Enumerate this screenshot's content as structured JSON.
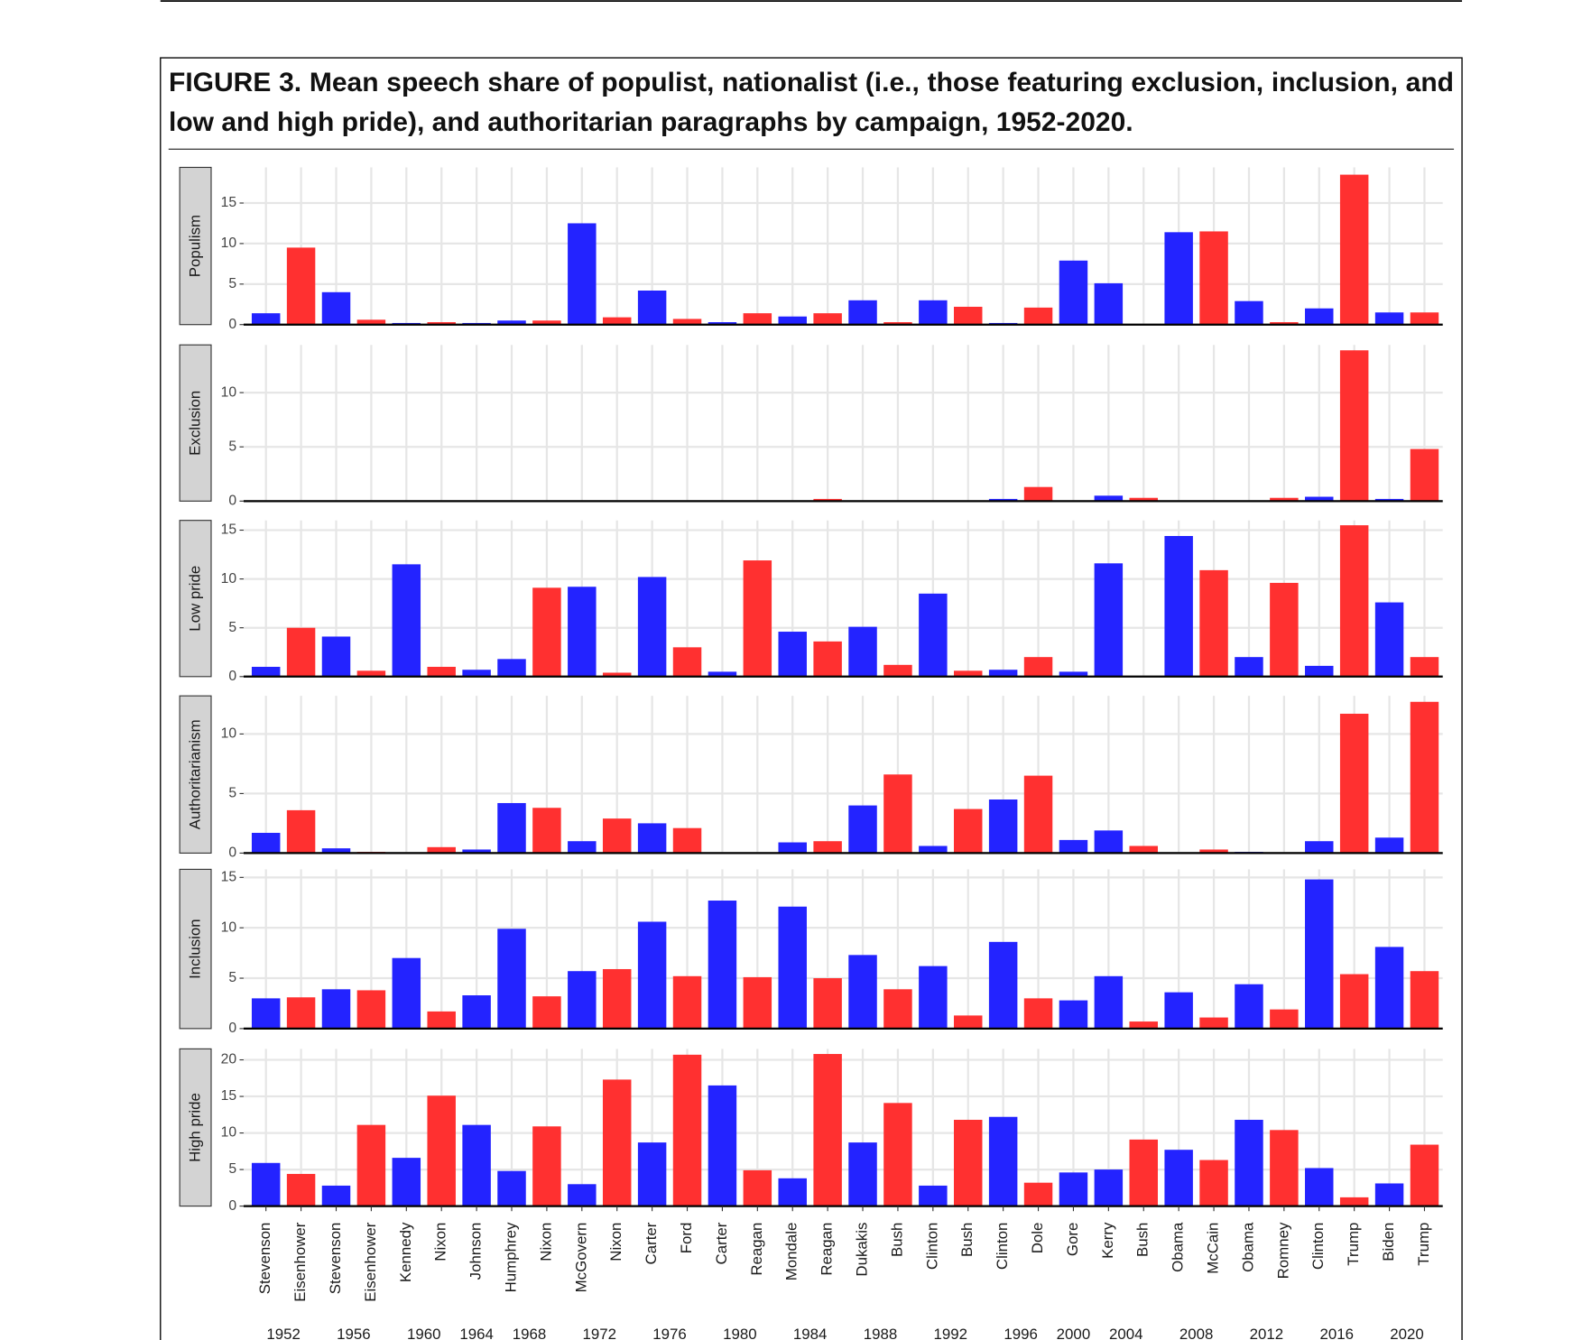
{
  "chart_data": {
    "type": "bar",
    "title": "FIGURE 3.  Mean speech share of populist, nationalist (i.e., those featuring exclusion, inclusion, and low and high pride), and authoritarian paragraphs by campaign, 1952-2020.",
    "categories": [
      "Stevenson",
      "Eisenhower",
      "Stevenson",
      "Eisenhower",
      "Kennedy",
      "Nixon",
      "Johnson",
      "Humphrey",
      "Nixon",
      "McGovern",
      "Nixon",
      "Carter",
      "Ford",
      "Carter",
      "Reagan",
      "Mondale",
      "Reagan",
      "Dukakis",
      "Bush",
      "Clinton",
      "Bush",
      "Clinton",
      "Dole",
      "Gore",
      "Kerry",
      "Bush",
      "Obama",
      "McCain",
      "Obama",
      "Romney",
      "Clinton",
      "Trump",
      "Biden",
      "Trump"
    ],
    "years": [
      "1952",
      "1952",
      "1956",
      "1956",
      "1960",
      "1960",
      "1964",
      "1968",
      "1968",
      "1972",
      "1972",
      "1976",
      "1976",
      "1980",
      "1980",
      "1984",
      "1984",
      "1988",
      "1988",
      "1992",
      "1992",
      "1996",
      "1996",
      "2000",
      "2004",
      "2004",
      "2008",
      "2008",
      "2012",
      "2012",
      "2016",
      "2016",
      "2020",
      "2020"
    ],
    "colors": [
      "#2323ff",
      "#ff3030",
      "#2323ff",
      "#ff3030",
      "#2323ff",
      "#ff3030",
      "#2323ff",
      "#2323ff",
      "#ff3030",
      "#2323ff",
      "#ff3030",
      "#2323ff",
      "#ff3030",
      "#2323ff",
      "#ff3030",
      "#2323ff",
      "#ff3030",
      "#2323ff",
      "#ff3030",
      "#2323ff",
      "#ff3030",
      "#2323ff",
      "#ff3030",
      "#2323ff",
      "#2323ff",
      "#ff3030",
      "#2323ff",
      "#ff3030",
      "#2323ff",
      "#ff3030",
      "#2323ff",
      "#ff3030",
      "#2323ff",
      "#ff3030"
    ],
    "grid": true,
    "panels": [
      {
        "name": "Populism",
        "ylim": [
          0,
          19.4
        ],
        "yticks": [
          0,
          5,
          10,
          15
        ],
        "values": [
          1.4,
          9.5,
          4.0,
          0.6,
          0.2,
          0.3,
          0.2,
          0.5,
          0.5,
          12.5,
          0.9,
          4.2,
          0.7,
          0.3,
          1.4,
          1.0,
          1.4,
          3.0,
          0.3,
          3.0,
          2.2,
          0.2,
          2.1,
          7.9,
          5.1,
          0,
          11.4,
          11.5,
          2.9,
          0.3,
          2.0,
          18.5,
          1.5,
          1.5
        ]
      },
      {
        "name": "Exclusion",
        "ylim": [
          0,
          14.4
        ],
        "yticks": [
          0,
          5,
          10
        ],
        "values": [
          0,
          0,
          0,
          0,
          0,
          0,
          0,
          0,
          0,
          0,
          0,
          0,
          0,
          0,
          0,
          0,
          0.2,
          0,
          0,
          0,
          0,
          0.2,
          1.3,
          0,
          0.5,
          0.3,
          0,
          0,
          0,
          0.3,
          0.4,
          13.9,
          0.2,
          4.8
        ]
      },
      {
        "name": "Low pride",
        "ylim": [
          0,
          16
        ],
        "yticks": [
          0,
          5,
          10,
          15
        ],
        "values": [
          1.0,
          5.0,
          4.1,
          0.6,
          11.5,
          1.0,
          0.7,
          1.8,
          9.1,
          9.2,
          0.4,
          10.2,
          3.0,
          0.5,
          11.9,
          4.6,
          3.6,
          5.1,
          1.2,
          8.5,
          0.6,
          0.7,
          2.0,
          0.5,
          11.6,
          0,
          14.4,
          10.9,
          2.0,
          9.6,
          1.1,
          15.5,
          7.6,
          2.0
        ]
      },
      {
        "name": "Authoritarianism",
        "ylim": [
          0,
          13.2
        ],
        "yticks": [
          0,
          5,
          10
        ],
        "values": [
          1.7,
          3.6,
          0.4,
          0.1,
          0,
          0.5,
          0.3,
          4.2,
          3.8,
          1.0,
          2.9,
          2.5,
          2.1,
          0,
          0,
          0.9,
          1.0,
          4.0,
          6.6,
          0.6,
          3.7,
          4.5,
          6.5,
          1.1,
          1.9,
          0.6,
          0,
          0.3,
          0.1,
          0,
          1.0,
          11.7,
          1.3,
          12.7
        ]
      },
      {
        "name": "Inclusion",
        "ylim": [
          0,
          15.8
        ],
        "yticks": [
          0,
          5,
          10,
          15
        ],
        "values": [
          3.0,
          3.1,
          3.9,
          3.8,
          7.0,
          1.7,
          3.3,
          9.9,
          3.2,
          5.7,
          5.9,
          10.6,
          5.2,
          12.7,
          5.1,
          12.1,
          5.0,
          7.3,
          3.9,
          6.2,
          1.3,
          8.6,
          3.0,
          2.8,
          5.2,
          0.7,
          3.6,
          1.1,
          4.4,
          1.9,
          14.8,
          5.4,
          8.1,
          5.7
        ]
      },
      {
        "name": "High pride",
        "ylim": [
          0,
          21.5
        ],
        "yticks": [
          0,
          5,
          10,
          15,
          20
        ],
        "values": [
          5.9,
          4.4,
          2.8,
          11.1,
          6.6,
          15.1,
          11.1,
          4.8,
          10.9,
          3.0,
          17.3,
          8.7,
          20.7,
          16.5,
          4.9,
          3.8,
          20.8,
          8.7,
          14.1,
          2.8,
          11.8,
          12.2,
          3.2,
          4.6,
          5.0,
          9.1,
          7.7,
          6.3,
          11.8,
          10.4,
          5.2,
          1.2,
          3.1,
          8.4
        ]
      }
    ]
  }
}
